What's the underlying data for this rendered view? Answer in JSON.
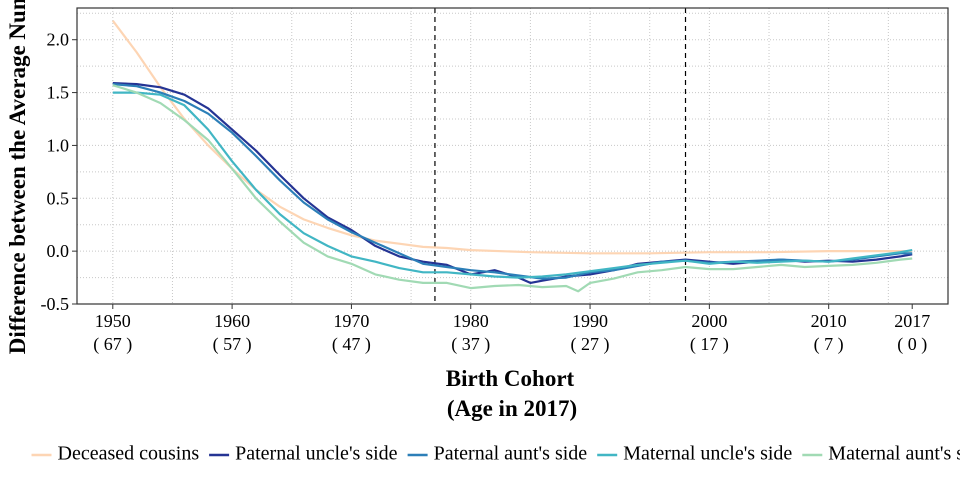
{
  "chart_data": {
    "type": "line",
    "title": "",
    "xlabel": "Birth Cohort",
    "xlabel_sub": "(Age in 2017)",
    "ylabel": "Difference between the Average Number",
    "xlim": [
      1947,
      2020
    ],
    "ylim": [
      -0.5,
      2.3
    ],
    "x_ticks": [
      {
        "value": 1950,
        "label": "1950",
        "sublabel": "( 67 )"
      },
      {
        "value": 1960,
        "label": "1960",
        "sublabel": "( 57 )"
      },
      {
        "value": 1970,
        "label": "1970",
        "sublabel": "( 47 )"
      },
      {
        "value": 1980,
        "label": "1980",
        "sublabel": "( 37 )"
      },
      {
        "value": 1990,
        "label": "1990",
        "sublabel": "( 27 )"
      },
      {
        "value": 2000,
        "label": "2000",
        "sublabel": "( 17 )"
      },
      {
        "value": 2010,
        "label": "2010",
        "sublabel": "( 7 )"
      },
      {
        "value": 2017,
        "label": "2017",
        "sublabel": "( 0 )"
      }
    ],
    "y_ticks": [
      {
        "value": -0.5,
        "label": "-0.5"
      },
      {
        "value": 0.0,
        "label": "0.0"
      },
      {
        "value": 0.5,
        "label": "0.5"
      },
      {
        "value": 1.0,
        "label": "1.0"
      },
      {
        "value": 1.5,
        "label": "1.5"
      },
      {
        "value": 2.0,
        "label": "2.0"
      }
    ],
    "grid": true,
    "vlines": [
      1977,
      1998
    ],
    "legend_position": "bottom",
    "series": [
      {
        "name": "Deceased cousins",
        "color": "#fdd5b4",
        "x": [
          1950,
          1952,
          1954,
          1956,
          1958,
          1960,
          1962,
          1964,
          1966,
          1968,
          1970,
          1972,
          1974,
          1976,
          1978,
          1980,
          1985,
          1990,
          1995,
          2000,
          2005,
          2010,
          2017
        ],
        "y": [
          2.18,
          1.88,
          1.55,
          1.25,
          1.0,
          0.78,
          0.58,
          0.42,
          0.3,
          0.22,
          0.15,
          0.1,
          0.07,
          0.04,
          0.03,
          0.01,
          -0.01,
          -0.02,
          -0.02,
          -0.01,
          -0.01,
          0.0,
          0.0
        ]
      },
      {
        "name": "Paternal uncle's side",
        "color": "#253494",
        "x": [
          1950,
          1952,
          1954,
          1956,
          1958,
          1960,
          1962,
          1964,
          1966,
          1968,
          1970,
          1972,
          1974,
          1976,
          1978,
          1980,
          1982,
          1984,
          1985,
          1986,
          1988,
          1990,
          1992,
          1994,
          1996,
          1998,
          2000,
          2002,
          2004,
          2006,
          2008,
          2010,
          2012,
          2014,
          2016,
          2017
        ],
        "y": [
          1.59,
          1.58,
          1.55,
          1.48,
          1.35,
          1.15,
          0.95,
          0.72,
          0.5,
          0.32,
          0.2,
          0.05,
          -0.05,
          -0.1,
          -0.13,
          -0.22,
          -0.18,
          -0.25,
          -0.3,
          -0.28,
          -0.24,
          -0.22,
          -0.18,
          -0.12,
          -0.1,
          -0.08,
          -0.1,
          -0.12,
          -0.1,
          -0.08,
          -0.1,
          -0.09,
          -0.1,
          -0.08,
          -0.05,
          -0.03
        ]
      },
      {
        "name": "Paternal aunt's side",
        "color": "#2c7fb8",
        "x": [
          1950,
          1952,
          1954,
          1956,
          1958,
          1960,
          1962,
          1964,
          1966,
          1968,
          1970,
          1972,
          1974,
          1976,
          1978,
          1980,
          1982,
          1984,
          1986,
          1988,
          1990,
          1992,
          1994,
          1996,
          1998,
          2000,
          2002,
          2004,
          2006,
          2008,
          2010,
          2012,
          2014,
          2016,
          2017
        ],
        "y": [
          1.58,
          1.56,
          1.5,
          1.42,
          1.3,
          1.12,
          0.9,
          0.67,
          0.46,
          0.3,
          0.18,
          0.08,
          -0.02,
          -0.12,
          -0.15,
          -0.18,
          -0.2,
          -0.23,
          -0.26,
          -0.25,
          -0.2,
          -0.18,
          -0.14,
          -0.1,
          -0.09,
          -0.11,
          -0.1,
          -0.09,
          -0.08,
          -0.09,
          -0.1,
          -0.08,
          -0.05,
          -0.02,
          -0.02
        ]
      },
      {
        "name": "Maternal uncle's side",
        "color": "#41b6c4",
        "x": [
          1950,
          1952,
          1954,
          1956,
          1958,
          1960,
          1962,
          1964,
          1966,
          1968,
          1970,
          1972,
          1974,
          1976,
          1978,
          1980,
          1982,
          1984,
          1986,
          1988,
          1990,
          1992,
          1994,
          1996,
          1998,
          2000,
          2002,
          2004,
          2006,
          2008,
          2010,
          2012,
          2014,
          2016,
          2017
        ],
        "y": [
          1.5,
          1.5,
          1.48,
          1.38,
          1.15,
          0.85,
          0.58,
          0.35,
          0.17,
          0.05,
          -0.05,
          -0.1,
          -0.16,
          -0.2,
          -0.2,
          -0.22,
          -0.24,
          -0.25,
          -0.24,
          -0.22,
          -0.19,
          -0.16,
          -0.13,
          -0.11,
          -0.09,
          -0.12,
          -0.1,
          -0.11,
          -0.1,
          -0.09,
          -0.1,
          -0.07,
          -0.04,
          -0.01,
          0.01
        ]
      },
      {
        "name": "Maternal aunt's side",
        "color": "#a1dab4",
        "x": [
          1950,
          1952,
          1954,
          1956,
          1958,
          1960,
          1962,
          1964,
          1966,
          1968,
          1970,
          1972,
          1974,
          1976,
          1978,
          1980,
          1982,
          1984,
          1986,
          1988,
          1989,
          1990,
          1992,
          1994,
          1996,
          1998,
          2000,
          2002,
          2004,
          2006,
          2008,
          2010,
          2012,
          2014,
          2016,
          2017
        ],
        "y": [
          1.57,
          1.5,
          1.4,
          1.24,
          1.05,
          0.78,
          0.5,
          0.28,
          0.08,
          -0.05,
          -0.12,
          -0.22,
          -0.27,
          -0.3,
          -0.3,
          -0.35,
          -0.33,
          -0.32,
          -0.34,
          -0.33,
          -0.38,
          -0.3,
          -0.26,
          -0.2,
          -0.18,
          -0.15,
          -0.17,
          -0.17,
          -0.15,
          -0.13,
          -0.15,
          -0.14,
          -0.13,
          -0.11,
          -0.08,
          -0.07
        ]
      }
    ]
  }
}
